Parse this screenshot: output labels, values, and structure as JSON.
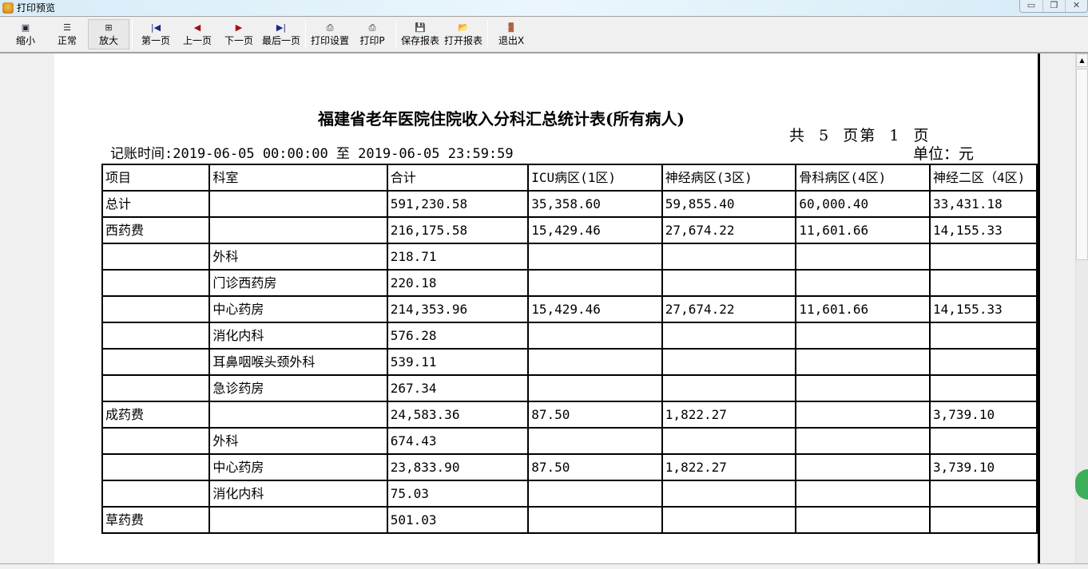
{
  "window": {
    "title": "打印预览",
    "controls": [
      "minimize",
      "restore",
      "close"
    ]
  },
  "toolbar": [
    {
      "label": "缩小",
      "icon": "zoom-out-icon",
      "glyph": "▣"
    },
    {
      "label": "正常",
      "icon": "normal-icon",
      "glyph": "☰"
    },
    {
      "label": "放大",
      "icon": "zoom-in-icon",
      "glyph": "⊞",
      "active": true
    },
    {
      "label": "第一页",
      "icon": "first-page-icon",
      "glyph": "|◀"
    },
    {
      "label": "上一页",
      "icon": "prev-page-icon",
      "glyph": "◀"
    },
    {
      "label": "下一页",
      "icon": "next-page-icon",
      "glyph": "▶"
    },
    {
      "label": "最后一页",
      "icon": "last-page-icon",
      "glyph": "▶|"
    },
    {
      "label": "打印设置",
      "icon": "print-setup-icon",
      "glyph": "⎙"
    },
    {
      "label": "打印P",
      "icon": "printer-icon",
      "glyph": "⎙"
    },
    {
      "label": "保存报表",
      "icon": "save-icon",
      "glyph": "💾"
    },
    {
      "label": "打开报表",
      "icon": "open-folder-icon",
      "glyph": "📂"
    },
    {
      "label": "退出X",
      "icon": "exit-door-icon",
      "glyph": "🚪"
    }
  ],
  "report": {
    "title": "福建省老年医院住院收入分科汇总统计表(所有病人)",
    "page_info": "共  5  页第  1  页",
    "unit": "单位：元",
    "period": "记账时间:2019-06-05 00:00:00 至 2019-06-05 23:59:59",
    "headers": [
      "项目",
      "科室",
      "合计",
      "ICU病区(1区)",
      "神经病区(3区)",
      "骨科病区(4区)",
      "神经二区（4区)"
    ],
    "rows": [
      [
        " 总计",
        "",
        "591,230.58",
        "35,358.60",
        "59,855.40",
        "60,000.40",
        "33,431.18"
      ],
      [
        "西药费",
        "",
        "216,175.58",
        "15,429.46",
        "27,674.22",
        "11,601.66",
        "14,155.33"
      ],
      [
        "",
        "外科",
        "218.71",
        "",
        "",
        "",
        ""
      ],
      [
        "",
        "门诊西药房",
        "220.18",
        "",
        "",
        "",
        ""
      ],
      [
        "",
        "中心药房",
        "214,353.96",
        "15,429.46",
        "27,674.22",
        "11,601.66",
        "14,155.33"
      ],
      [
        "",
        "消化内科",
        "576.28",
        "",
        "",
        "",
        ""
      ],
      [
        "",
        "耳鼻咽喉头颈外科",
        "539.11",
        "",
        "",
        "",
        ""
      ],
      [
        "",
        "急诊药房",
        "267.34",
        "",
        "",
        "",
        ""
      ],
      [
        "成药费",
        "",
        "24,583.36",
        "87.50",
        "1,822.27",
        "",
        "3,739.10"
      ],
      [
        "",
        "外科",
        "674.43",
        "",
        "",
        "",
        ""
      ],
      [
        "",
        "中心药房",
        "23,833.90",
        "87.50",
        "1,822.27",
        "",
        "3,739.10"
      ],
      [
        "",
        "消化内科",
        "75.03",
        "",
        "",
        "",
        ""
      ],
      [
        "草药费",
        "",
        "501.03",
        "",
        "",
        "",
        ""
      ]
    ]
  }
}
